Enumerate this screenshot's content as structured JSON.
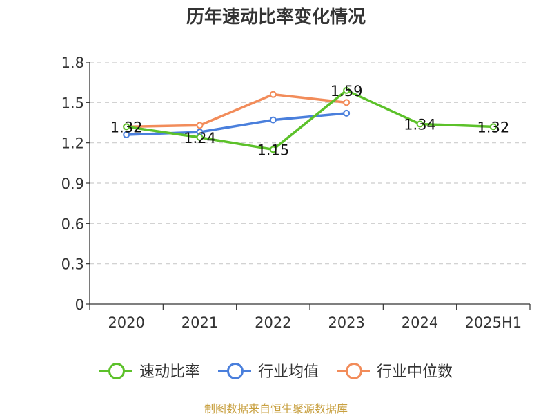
{
  "title": "历年速动比率变化情况",
  "source_note": "制图数据来自恒生聚源数据库",
  "chart_data": {
    "type": "line",
    "categories": [
      "2020",
      "2021",
      "2022",
      "2023",
      "2024",
      "2025H1"
    ],
    "ylim": [
      0,
      1.8
    ],
    "yticks": [
      "0",
      "0.3",
      "0.6",
      "0.9",
      "1.2",
      "1.5",
      "1.8"
    ],
    "grid": true,
    "legend_position": "bottom",
    "series": [
      {
        "name": "速动比率",
        "color": "#5cc12a",
        "values": [
          1.32,
          1.24,
          1.15,
          1.59,
          1.34,
          1.32
        ],
        "labels": [
          "1.32",
          "1.24",
          "1.15",
          "1.59",
          "1.34",
          "1.32"
        ]
      },
      {
        "name": "行业均值",
        "color": "#4a7fdc",
        "values": [
          1.26,
          1.28,
          1.37,
          1.42,
          null,
          null
        ]
      },
      {
        "name": "行业中位数",
        "color": "#f28c5a",
        "values": [
          1.32,
          1.33,
          1.56,
          1.5,
          null,
          null
        ]
      }
    ]
  }
}
